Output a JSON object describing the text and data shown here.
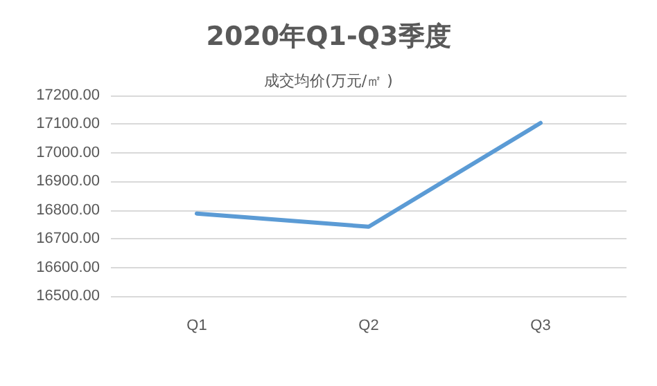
{
  "chart_data": {
    "type": "line",
    "title": "2020年Q1-Q3季度",
    "subtitle": "成交均价(万元/㎡ )",
    "categories": [
      "Q1",
      "Q2",
      "Q3"
    ],
    "series": [
      {
        "color": "#5b9bd5",
        "values": [
          16788,
          16742,
          17104
        ]
      }
    ],
    "ylim": [
      16500,
      17200
    ],
    "yticks": [
      {
        "value": 16500,
        "label": "16500.00"
      },
      {
        "value": 16600,
        "label": "16600.00"
      },
      {
        "value": 16700,
        "label": "16700.00"
      },
      {
        "value": 16800,
        "label": "16800.00"
      },
      {
        "value": 16900,
        "label": "16900.00"
      },
      {
        "value": 17000,
        "label": "17000.00"
      },
      {
        "value": 17100,
        "label": "17100.00"
      },
      {
        "value": 17200,
        "label": "17200.00"
      }
    ],
    "grid": "y",
    "marker": "none",
    "line_style": "solid"
  }
}
